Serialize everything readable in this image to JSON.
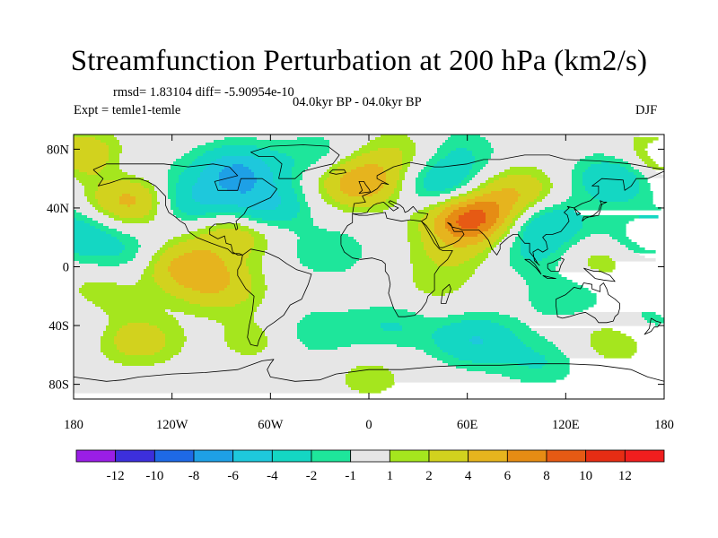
{
  "chart_data": {
    "type": "heatmap",
    "title": "Streamfunction Perturbation at 200 hPa (km2/s)",
    "rmsd_label": "rmsd= 1.83104 diff= -5.90954e-10",
    "period_label": "04.0kyr BP - 04.0kyr BP",
    "experiment_label": "Expt = temle1-temle",
    "season_label": "DJF",
    "x_ticks": [
      {
        "value": -180,
        "label": "180"
      },
      {
        "value": -120,
        "label": "120W"
      },
      {
        "value": -60,
        "label": "60W"
      },
      {
        "value": 0,
        "label": "0"
      },
      {
        "value": 60,
        "label": "60E"
      },
      {
        "value": 120,
        "label": "120E"
      },
      {
        "value": 180,
        "label": "180"
      }
    ],
    "y_ticks": [
      {
        "value": 80,
        "label": "80N"
      },
      {
        "value": 40,
        "label": "40N"
      },
      {
        "value": 0,
        "label": "0"
      },
      {
        "value": -40,
        "label": "40S"
      },
      {
        "value": -80,
        "label": "80S"
      }
    ],
    "xlim": [
      -180,
      180
    ],
    "ylim": [
      -90,
      90
    ],
    "colorbar": {
      "levels": [
        -12,
        -10,
        -8,
        -6,
        -4,
        -2,
        -1,
        1,
        2,
        4,
        6,
        8,
        10,
        12
      ],
      "colors": [
        "#9a1ee6",
        "#3c2fdc",
        "#1e69e6",
        "#1ea0e6",
        "#1ec8dc",
        "#14d7c3",
        "#1ee69b",
        "#e6e6e6",
        "#a5e61e",
        "#d2d21e",
        "#e6b41e",
        "#e68c14",
        "#e65a14",
        "#e62d14",
        "#f01e1e"
      ]
    },
    "anomalies": [
      {
        "lon": -145,
        "lat": 45,
        "value": 5
      },
      {
        "lon": -175,
        "lat": 25,
        "value": -2
      },
      {
        "lon": -108,
        "lat": 45,
        "value": -4
      },
      {
        "lon": -150,
        "lat": 70,
        "value": -2
      },
      {
        "lon": -110,
        "lat": 0,
        "value": 5
      },
      {
        "lon": -80,
        "lat": 65,
        "value": -6
      },
      {
        "lon": -65,
        "lat": 40,
        "value": -5
      },
      {
        "lon": -80,
        "lat": 25,
        "value": 4
      },
      {
        "lon": -150,
        "lat": 10,
        "value": -2
      },
      {
        "lon": -165,
        "lat": -20,
        "value": 2
      },
      {
        "lon": -140,
        "lat": -50,
        "value": 3
      },
      {
        "lon": -90,
        "lat": -15,
        "value": 3
      },
      {
        "lon": -70,
        "lat": -50,
        "value": 1.5
      },
      {
        "lon": -30,
        "lat": -45,
        "value": -2
      },
      {
        "lon": -25,
        "lat": 10,
        "value": -2
      },
      {
        "lon": -5,
        "lat": 58,
        "value": 6
      },
      {
        "lon": -30,
        "lat": 75,
        "value": -2
      },
      {
        "lon": 20,
        "lat": 78,
        "value": 2
      },
      {
        "lon": 45,
        "lat": 55,
        "value": -4
      },
      {
        "lon": 55,
        "lat": 78,
        "value": -2
      },
      {
        "lon": 62,
        "lat": 33,
        "value": 9
      },
      {
        "lon": 50,
        "lat": 10,
        "value": 2
      },
      {
        "lon": 90,
        "lat": 50,
        "value": 4
      },
      {
        "lon": 108,
        "lat": 30,
        "value": -4
      },
      {
        "lon": 100,
        "lat": 10,
        "value": -2
      },
      {
        "lon": 150,
        "lat": 60,
        "value": -4
      },
      {
        "lon": 165,
        "lat": 20,
        "value": -2
      },
      {
        "lon": 140,
        "lat": 5,
        "value": 2
      },
      {
        "lon": 120,
        "lat": -20,
        "value": -2
      },
      {
        "lon": 150,
        "lat": -50,
        "value": 2
      },
      {
        "lon": 65,
        "lat": -50,
        "value": -4
      },
      {
        "lon": 15,
        "lat": -40,
        "value": -2
      },
      {
        "lon": 105,
        "lat": -65,
        "value": -2
      },
      {
        "lon": 175,
        "lat": -35,
        "value": -2
      },
      {
        "lon": -165,
        "lat": 75,
        "value": 3
      },
      {
        "lon": 175,
        "lat": 75,
        "value": 2
      },
      {
        "lon": 0,
        "lat": -75,
        "value": 1.5
      },
      {
        "lon": 40,
        "lat": -15,
        "value": 1.2
      }
    ]
  }
}
